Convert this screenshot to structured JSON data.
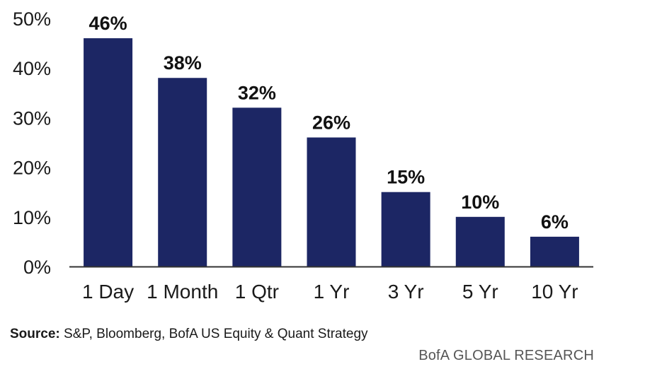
{
  "chart_data": {
    "type": "bar",
    "categories": [
      "1 Day",
      "1 Month",
      "1 Qtr",
      "1 Yr",
      "3 Yr",
      "5 Yr",
      "10 Yr"
    ],
    "values": [
      46,
      38,
      32,
      26,
      15,
      10,
      6
    ],
    "data_labels": [
      "46%",
      "38%",
      "32%",
      "26%",
      "15%",
      "10%",
      "6%"
    ],
    "yticks": [
      "0%",
      "10%",
      "20%",
      "30%",
      "40%",
      "50%"
    ],
    "ylim": [
      0,
      50
    ],
    "grid": false,
    "bar_color": "#1c2664"
  },
  "source": {
    "label": "Source:",
    "text": "S&P, Bloomberg, BofA US Equity & Quant Strategy"
  },
  "brand": "BofA GLOBAL RESEARCH"
}
